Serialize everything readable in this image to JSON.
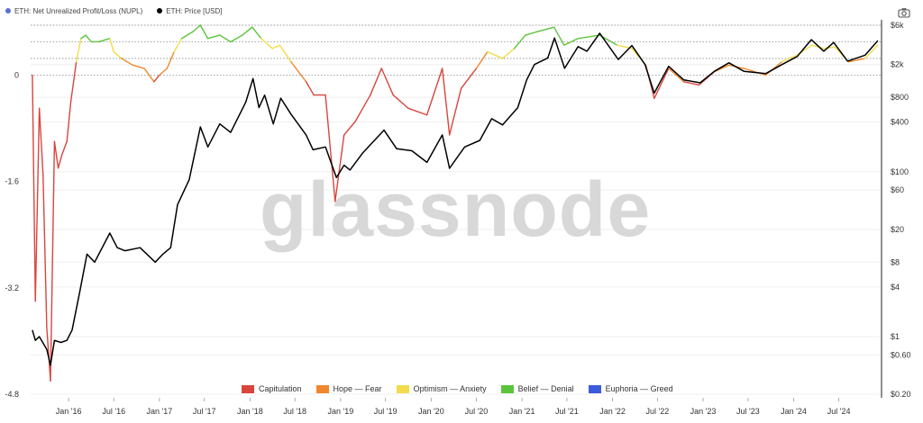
{
  "legend_top": {
    "nupl_label": "ETH: Net Unrealized Profit/Loss (NUPL)",
    "nupl_color": "#5a6fd6",
    "price_label": "ETH: Price [USD]",
    "price_color": "#000000"
  },
  "watermark": "glassnode",
  "icons": {
    "camera": "camera-icon"
  },
  "bottom_legend": [
    {
      "label": "Capitulation",
      "color": "#d9453d"
    },
    {
      "label": "Hope — Fear",
      "color": "#f0872e"
    },
    {
      "label": "Optimism — Anxiety",
      "color": "#f2dc4b"
    },
    {
      "label": "Belief — Denial",
      "color": "#5cc43b"
    },
    {
      "label": "Euphoria — Greed",
      "color": "#3b5bdb"
    }
  ],
  "chart_data": {
    "type": "line",
    "x_ticks": [
      "Jan '16",
      "Jul '16",
      "Jan '17",
      "Jul '17",
      "Jan '18",
      "Jul '18",
      "Jan '19",
      "Jul '19",
      "Jan '20",
      "Jul '20",
      "Jan '21",
      "Jul '21",
      "Jan '22",
      "Jul '22",
      "Jan '23",
      "Jul '23",
      "Jan '24",
      "Jul '24"
    ],
    "left_axis": {
      "series": "ETH: Net Unrealized Profit/Loss (NUPL)",
      "ticks": [
        "0",
        "-1.6",
        "-3.2",
        "-4.8"
      ],
      "tick_values": [
        0,
        -1.6,
        -3.2,
        -4.8
      ],
      "range": [
        -4.8,
        0.75
      ]
    },
    "right_axis": {
      "series": "ETH: Price [USD]",
      "scale": "log",
      "ticks": [
        "$6k",
        "$2k",
        "$800",
        "$400",
        "$100",
        "$60",
        "$20",
        "$8",
        "$4",
        "$1",
        "$0.60",
        "$0.20"
      ],
      "tick_values": [
        6000,
        2000,
        800,
        400,
        100,
        60,
        20,
        8,
        4,
        1,
        0.6,
        0.2
      ],
      "range": [
        0.2,
        6000
      ]
    },
    "thresholds_nupl": [
      0,
      0.25,
      0.5,
      0.75
    ],
    "nupl_series": {
      "name": "ETH: Net Unrealized Profit/Loss (NUPL)",
      "points": [
        [
          "2015-08-08",
          0.0
        ],
        [
          "2015-08-20",
          -3.4
        ],
        [
          "2015-09-05",
          -0.5
        ],
        [
          "2015-09-20",
          -1.5
        ],
        [
          "2015-10-05",
          -3.8
        ],
        [
          "2015-10-20",
          -4.6
        ],
        [
          "2015-11-05",
          -1.0
        ],
        [
          "2015-11-20",
          -1.4
        ],
        [
          "2015-12-05",
          -1.2
        ],
        [
          "2015-12-25",
          -1.0
        ],
        [
          "2016-01-10",
          -0.4
        ],
        [
          "2016-02-01",
          0.2
        ],
        [
          "2016-02-20",
          0.55
        ],
        [
          "2016-03-10",
          0.6
        ],
        [
          "2016-04-01",
          0.5
        ],
        [
          "2016-05-01",
          0.5
        ],
        [
          "2016-06-15",
          0.55
        ],
        [
          "2016-07-01",
          0.35
        ],
        [
          "2016-08-01",
          0.25
        ],
        [
          "2016-09-15",
          0.15
        ],
        [
          "2016-11-01",
          0.1
        ],
        [
          "2016-12-10",
          -0.1
        ],
        [
          "2017-01-01",
          0.0
        ],
        [
          "2017-02-01",
          0.1
        ],
        [
          "2017-03-01",
          0.35
        ],
        [
          "2017-04-01",
          0.55
        ],
        [
          "2017-05-15",
          0.65
        ],
        [
          "2017-06-15",
          0.75
        ],
        [
          "2017-07-15",
          0.55
        ],
        [
          "2017-09-01",
          0.6
        ],
        [
          "2017-10-15",
          0.5
        ],
        [
          "2017-12-01",
          0.6
        ],
        [
          "2018-01-10",
          0.72
        ],
        [
          "2018-02-15",
          0.55
        ],
        [
          "2018-04-01",
          0.4
        ],
        [
          "2018-05-01",
          0.45
        ],
        [
          "2018-06-15",
          0.2
        ],
        [
          "2018-08-15",
          -0.1
        ],
        [
          "2018-09-15",
          -0.3
        ],
        [
          "2018-11-01",
          -0.3
        ],
        [
          "2018-12-10",
          -1.9
        ],
        [
          "2019-01-15",
          -0.9
        ],
        [
          "2019-03-01",
          -0.7
        ],
        [
          "2019-05-01",
          -0.3
        ],
        [
          "2019-06-15",
          0.1
        ],
        [
          "2019-08-01",
          -0.3
        ],
        [
          "2019-10-01",
          -0.5
        ],
        [
          "2019-12-15",
          -0.6
        ],
        [
          "2020-02-15",
          0.1
        ],
        [
          "2020-03-15",
          -0.9
        ],
        [
          "2020-05-01",
          -0.2
        ],
        [
          "2020-07-01",
          0.1
        ],
        [
          "2020-08-15",
          0.35
        ],
        [
          "2020-10-15",
          0.25
        ],
        [
          "2020-12-01",
          0.4
        ],
        [
          "2021-01-15",
          0.6
        ],
        [
          "2021-03-01",
          0.65
        ],
        [
          "2021-05-10",
          0.72
        ],
        [
          "2021-06-20",
          0.45
        ],
        [
          "2021-08-15",
          0.55
        ],
        [
          "2021-11-10",
          0.6
        ],
        [
          "2022-01-20",
          0.45
        ],
        [
          "2022-03-20",
          0.4
        ],
        [
          "2022-05-15",
          0.15
        ],
        [
          "2022-06-18",
          -0.35
        ],
        [
          "2022-08-15",
          0.1
        ],
        [
          "2022-10-15",
          -0.1
        ],
        [
          "2022-12-15",
          -0.15
        ],
        [
          "2023-02-15",
          0.05
        ],
        [
          "2023-04-15",
          0.15
        ],
        [
          "2023-06-15",
          0.1
        ],
        [
          "2023-09-10",
          0.0
        ],
        [
          "2023-11-15",
          0.2
        ],
        [
          "2024-01-15",
          0.3
        ],
        [
          "2024-03-15",
          0.45
        ],
        [
          "2024-05-01",
          0.4
        ],
        [
          "2024-06-15",
          0.42
        ],
        [
          "2024-08-10",
          0.2
        ],
        [
          "2024-10-15",
          0.25
        ],
        [
          "2024-12-05",
          0.45
        ]
      ]
    },
    "price_series": {
      "name": "ETH: Price [USD]",
      "points": [
        [
          "2015-08-08",
          1.2
        ],
        [
          "2015-08-20",
          0.9
        ],
        [
          "2015-09-05",
          1.0
        ],
        [
          "2015-10-05",
          0.7
        ],
        [
          "2015-10-20",
          0.45
        ],
        [
          "2015-11-05",
          0.9
        ],
        [
          "2015-12-01",
          0.85
        ],
        [
          "2015-12-25",
          0.9
        ],
        [
          "2016-01-15",
          1.2
        ],
        [
          "2016-02-15",
          3.5
        ],
        [
          "2016-03-15",
          10
        ],
        [
          "2016-04-15",
          8
        ],
        [
          "2016-06-15",
          18
        ],
        [
          "2016-07-15",
          12
        ],
        [
          "2016-08-15",
          11
        ],
        [
          "2016-10-15",
          12
        ],
        [
          "2016-12-15",
          8
        ],
        [
          "2017-01-15",
          10
        ],
        [
          "2017-02-15",
          12
        ],
        [
          "2017-03-15",
          40
        ],
        [
          "2017-05-01",
          80
        ],
        [
          "2017-06-15",
          350
        ],
        [
          "2017-07-15",
          200
        ],
        [
          "2017-09-01",
          380
        ],
        [
          "2017-10-15",
          300
        ],
        [
          "2017-12-15",
          700
        ],
        [
          "2018-01-13",
          1350
        ],
        [
          "2018-02-06",
          600
        ],
        [
          "2018-03-01",
          850
        ],
        [
          "2018-04-05",
          380
        ],
        [
          "2018-05-05",
          780
        ],
        [
          "2018-06-15",
          500
        ],
        [
          "2018-08-15",
          280
        ],
        [
          "2018-09-12",
          185
        ],
        [
          "2018-11-01",
          200
        ],
        [
          "2018-12-15",
          85
        ],
        [
          "2019-01-15",
          120
        ],
        [
          "2019-02-08",
          105
        ],
        [
          "2019-04-01",
          170
        ],
        [
          "2019-06-25",
          320
        ],
        [
          "2019-08-15",
          190
        ],
        [
          "2019-10-15",
          180
        ],
        [
          "2019-12-15",
          130
        ],
        [
          "2020-02-15",
          280
        ],
        [
          "2020-03-15",
          110
        ],
        [
          "2020-05-15",
          200
        ],
        [
          "2020-07-15",
          240
        ],
        [
          "2020-09-01",
          440
        ],
        [
          "2020-10-15",
          370
        ],
        [
          "2020-12-15",
          600
        ],
        [
          "2021-01-20",
          1300
        ],
        [
          "2021-02-20",
          2000
        ],
        [
          "2021-04-15",
          2400
        ],
        [
          "2021-05-12",
          4200
        ],
        [
          "2021-06-22",
          1800
        ],
        [
          "2021-08-15",
          3300
        ],
        [
          "2021-09-20",
          2900
        ],
        [
          "2021-11-10",
          4800
        ],
        [
          "2022-01-24",
          2300
        ],
        [
          "2022-03-20",
          3400
        ],
        [
          "2022-05-12",
          2000
        ],
        [
          "2022-06-18",
          900
        ],
        [
          "2022-08-15",
          1900
        ],
        [
          "2022-10-15",
          1300
        ],
        [
          "2022-12-20",
          1200
        ],
        [
          "2023-02-15",
          1650
        ],
        [
          "2023-04-15",
          2100
        ],
        [
          "2023-06-15",
          1650
        ],
        [
          "2023-09-10",
          1550
        ],
        [
          "2023-11-15",
          2000
        ],
        [
          "2024-01-15",
          2500
        ],
        [
          "2024-03-12",
          4000
        ],
        [
          "2024-05-01",
          2900
        ],
        [
          "2024-06-10",
          3700
        ],
        [
          "2024-08-05",
          2200
        ],
        [
          "2024-10-15",
          2600
        ],
        [
          "2024-12-05",
          3900
        ]
      ]
    }
  }
}
